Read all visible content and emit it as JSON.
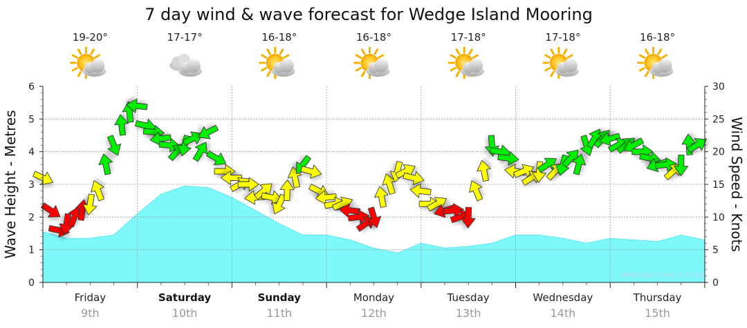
{
  "chart_data": {
    "type": "area",
    "title": "7 day wind & wave forecast for Wedge Island Mooring",
    "ylabel_left": "Wave Height - Metres",
    "ylabel_right": "Wind Speed - Knots",
    "ylim_left": [
      0,
      6
    ],
    "ylim_right": [
      0,
      30
    ],
    "yticks_left": [
      "0",
      "1",
      "2",
      "3",
      "4",
      "5",
      "6"
    ],
    "yticks_right": [
      "0",
      "5",
      "10",
      "15",
      "20",
      "25",
      "30"
    ],
    "grid": true,
    "days": [
      {
        "name": "Friday",
        "date": "9th",
        "temp": "19-20°",
        "weather": "partly-cloudy",
        "bold": false
      },
      {
        "name": "Saturday",
        "date": "10th",
        "temp": "17-17°",
        "weather": "cloudy",
        "bold": true
      },
      {
        "name": "Sunday",
        "date": "11th",
        "temp": "16-18°",
        "weather": "partly-cloudy",
        "bold": true
      },
      {
        "name": "Monday",
        "date": "12th",
        "temp": "16-18°",
        "weather": "partly-cloudy",
        "bold": false
      },
      {
        "name": "Tuesday",
        "date": "13th",
        "temp": "17-18°",
        "weather": "partly-cloudy",
        "bold": false
      },
      {
        "name": "Wednesday",
        "date": "14th",
        "temp": "17-18°",
        "weather": "partly-cloudy",
        "bold": false
      },
      {
        "name": "Thursday",
        "date": "15th",
        "temp": "16-18°",
        "weather": "partly-cloudy",
        "bold": false
      }
    ],
    "wave_height": {
      "name": "Wave Height",
      "color": "#7ff8fc",
      "x_hours": [
        0,
        6,
        12,
        18,
        24,
        30,
        36,
        42,
        48,
        54,
        60,
        66,
        72,
        78,
        84,
        90,
        96,
        102,
        108,
        114,
        120,
        126,
        132,
        138,
        144,
        150,
        156,
        162,
        168
      ],
      "values": [
        1.55,
        1.35,
        1.35,
        1.45,
        2.1,
        2.7,
        2.95,
        2.9,
        2.6,
        2.2,
        1.8,
        1.45,
        1.45,
        1.3,
        1.05,
        0.9,
        1.2,
        1.05,
        1.1,
        1.2,
        1.45,
        1.45,
        1.35,
        1.2,
        1.35,
        1.3,
        1.25,
        1.45,
        1.3
      ]
    },
    "wind_speed": {
      "name": "Wind Speed",
      "x_hours": [
        0,
        2,
        4,
        6,
        8,
        10,
        12,
        14,
        16,
        18,
        20,
        22,
        24,
        26,
        28,
        30,
        32,
        34,
        36,
        38,
        40,
        42,
        44,
        46,
        48,
        50,
        52,
        54,
        56,
        58,
        60,
        62,
        64,
        66,
        68,
        70,
        72,
        74,
        76,
        78,
        80,
        82,
        84,
        86,
        88,
        90,
        92,
        94,
        96,
        98,
        100,
        102,
        104,
        106,
        108,
        110,
        112,
        114,
        116,
        118,
        120,
        122,
        124,
        126,
        128,
        130,
        132,
        134,
        136,
        138,
        140,
        142,
        144,
        146,
        148,
        150,
        152,
        154,
        156,
        158,
        160,
        162,
        164,
        166
      ],
      "values": [
        16,
        11,
        8,
        9,
        10,
        11,
        12,
        14,
        18,
        21,
        24,
        26,
        27,
        24,
        23,
        22,
        21,
        20,
        21,
        22,
        20,
        23,
        19,
        17,
        16,
        15,
        15,
        13,
        14,
        13,
        12,
        14,
        16,
        18,
        17,
        14,
        13,
        12,
        12,
        11,
        10,
        9,
        10,
        13,
        15,
        17,
        17,
        16,
        14,
        12,
        12,
        11,
        11,
        10,
        10,
        14,
        17,
        21,
        20,
        19,
        17,
        17,
        16,
        17,
        18,
        17,
        18,
        19,
        18,
        21,
        22,
        22,
        22,
        21,
        21,
        21,
        20,
        19,
        18,
        18,
        17,
        18,
        21,
        21
      ]
    }
  },
  "watermark": "www.seabreeze.com.au"
}
